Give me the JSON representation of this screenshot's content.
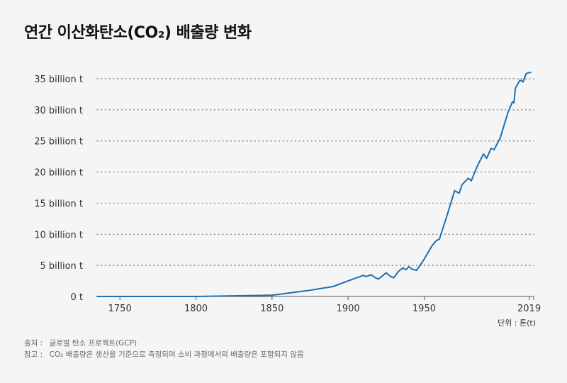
{
  "chart_data": {
    "type": "line",
    "title": "연간 이산화탄소(CO₂) 배출량 변화",
    "unit_label": "단위 : 톤(t)",
    "xlim": [
      1735,
      2022
    ],
    "ylim": [
      0,
      36
    ],
    "x_ticks": [
      1750,
      1800,
      1850,
      1900,
      1950,
      2019
    ],
    "y_ticks": [
      {
        "value": 0,
        "label": "0  t"
      },
      {
        "value": 5,
        "label": "5 billion t"
      },
      {
        "value": 10,
        "label": "10 billion t"
      },
      {
        "value": 15,
        "label": "15 billion t"
      },
      {
        "value": 20,
        "label": "20 billion t"
      },
      {
        "value": 25,
        "label": "25 billion t"
      },
      {
        "value": 30,
        "label": "30 billion t"
      },
      {
        "value": 35,
        "label": "35 billion t"
      }
    ],
    "grid": "dotted-horizontal",
    "color": "#1f6fb2",
    "series": [
      {
        "name": "CO2 emissions",
        "x": [
          1735,
          1750,
          1800,
          1850,
          1875,
          1890,
          1900,
          1910,
          1912,
          1915,
          1918,
          1920,
          1925,
          1928,
          1930,
          1933,
          1936,
          1938,
          1940,
          1942,
          1945,
          1950,
          1955,
          1958,
          1960,
          1965,
          1970,
          1973,
          1975,
          1979,
          1981,
          1985,
          1989,
          1991,
          1994,
          1996,
          2000,
          2005,
          2008,
          2009,
          2010,
          2013,
          2015,
          2017,
          2019,
          2020
        ],
        "y": [
          0,
          0,
          0,
          0.2,
          1.0,
          1.6,
          2.5,
          3.4,
          3.2,
          3.5,
          3.0,
          2.8,
          3.8,
          3.2,
          3.0,
          4.0,
          4.6,
          4.3,
          4.8,
          4.4,
          4.2,
          6.0,
          8.1,
          9.0,
          9.2,
          13.0,
          17.0,
          16.6,
          18.0,
          19.0,
          18.6,
          21.0,
          22.9,
          22.2,
          23.8,
          23.6,
          25.5,
          29.5,
          31.3,
          31.1,
          33.5,
          34.8,
          34.5,
          35.8,
          36.0,
          36.0
        ]
      }
    ]
  },
  "footer": {
    "source_label": "출처 :",
    "source_text": "글로벌 탄소 프로젝트(GCP)",
    "note_label": "참고 :",
    "note_text": "CO₂ 배출량은 생산을 기준으로 측정되며 소비 과정에서의 배출량은 포함되지 않음"
  }
}
